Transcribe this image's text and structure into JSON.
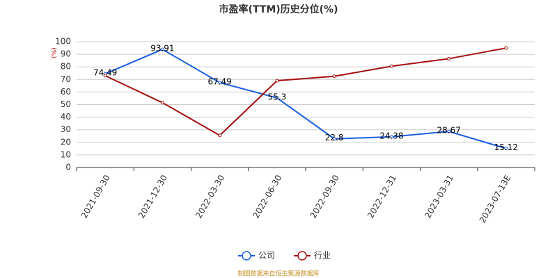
{
  "chart_data": {
    "type": "line",
    "title": "市盈率(TTM)历史分位(%)",
    "y_label": "(%)",
    "categories": [
      "2021-09-30",
      "2021-12-30",
      "2022-03-30",
      "2022-06-30",
      "2022-09-30",
      "2022-12-31",
      "2023-03-31",
      "2023-07-13E"
    ],
    "series": [
      {
        "name": "公司",
        "color": "#1a5fe0",
        "values": [
          74.49,
          93.91,
          67.49,
          55.3,
          22.8,
          24.38,
          28.67,
          15.12
        ]
      },
      {
        "name": "行业",
        "color": "#a50f0f",
        "values": [
          73,
          51.5,
          25.5,
          69,
          72.5,
          80.5,
          86.5,
          95
        ]
      }
    ],
    "ylim": [
      0,
      100
    ],
    "yticks": [
      0,
      10,
      20,
      30,
      40,
      50,
      60,
      70,
      80,
      90,
      100
    ],
    "grid": true,
    "source": "制图数据来自恒生聚源数据库"
  }
}
